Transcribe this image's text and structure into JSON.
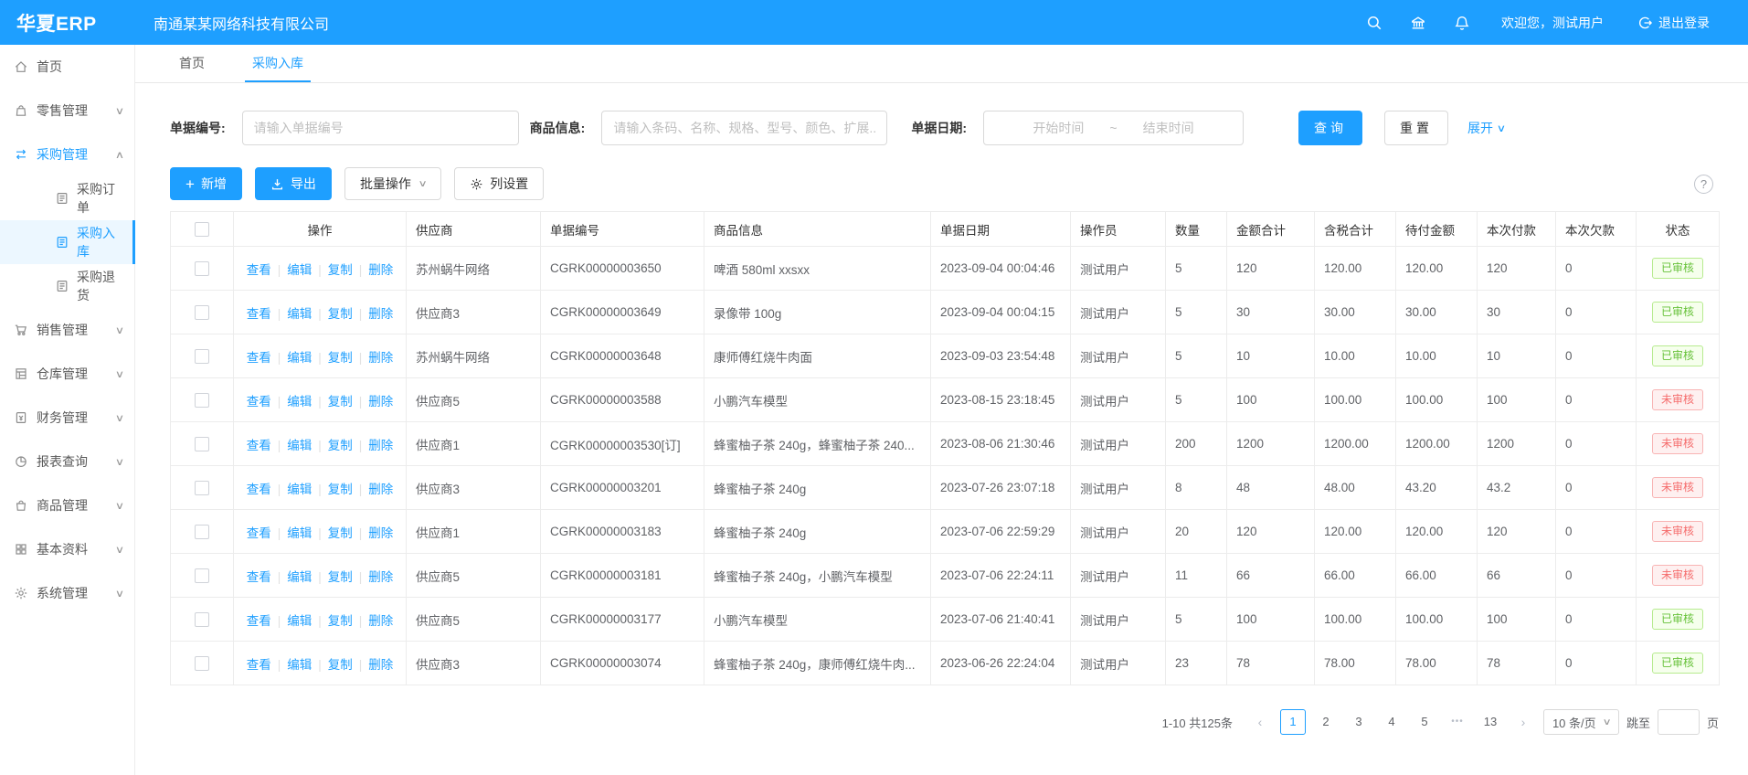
{
  "colors": {
    "primary": "#1e9fff",
    "approved_green": "#67c23a",
    "pending_red": "#f56c6c"
  },
  "header": {
    "logo": "华夏ERP",
    "company": "南通某某网络科技有限公司",
    "welcome": "欢迎您，测试用户",
    "logout": "退出登录"
  },
  "tabs": [
    {
      "id": "home",
      "label": "首页",
      "active": false
    },
    {
      "id": "purchase-in",
      "label": "采购入库",
      "active": true
    }
  ],
  "sidebar": {
    "items": [
      {
        "id": "home",
        "label": "首页",
        "icon": "home"
      },
      {
        "id": "retail",
        "label": "零售管理",
        "icon": "retail",
        "chevron": "down"
      },
      {
        "id": "purchase",
        "label": "采购管理",
        "icon": "purchase",
        "chevron": "up",
        "active": true
      },
      {
        "id": "purchase-order",
        "label": "采购订单",
        "icon": "doc",
        "child": true
      },
      {
        "id": "purchase-in",
        "label": "采购入库",
        "icon": "doc",
        "child": true,
        "selected": true
      },
      {
        "id": "purchase-return",
        "label": "采购退货",
        "icon": "doc",
        "child": true
      },
      {
        "id": "sales",
        "label": "销售管理",
        "icon": "cart",
        "chevron": "down"
      },
      {
        "id": "warehouse",
        "label": "仓库管理",
        "icon": "warehouse",
        "chevron": "down"
      },
      {
        "id": "finance",
        "label": "财务管理",
        "icon": "finance",
        "chevron": "down"
      },
      {
        "id": "report",
        "label": "报表查询",
        "icon": "report",
        "chevron": "down"
      },
      {
        "id": "goods",
        "label": "商品管理",
        "icon": "goods",
        "chevron": "down"
      },
      {
        "id": "basic",
        "label": "基本资料",
        "icon": "basic",
        "chevron": "down"
      },
      {
        "id": "system",
        "label": "系统管理",
        "icon": "system",
        "chevron": "down"
      }
    ]
  },
  "filters": {
    "bill_no_label": "单据编号:",
    "bill_no_placeholder": "请输入单据编号",
    "product_label": "商品信息:",
    "product_placeholder": "请输入条码、名称、规格、型号、颜色、扩展...",
    "date_label": "单据日期:",
    "date_start": "开始时间",
    "date_sep": "~",
    "date_end": "结束时间",
    "search": "查询",
    "reset": "重置",
    "expand": "展开"
  },
  "toolbar": {
    "add": "新增",
    "export": "导出",
    "batch": "批量操作",
    "columns": "列设置",
    "help": "?"
  },
  "table": {
    "headers": [
      "操作",
      "供应商",
      "单据编号",
      "商品信息",
      "单据日期",
      "操作员",
      "数量",
      "金额合计",
      "含税合计",
      "待付金额",
      "本次付款",
      "本次欠款",
      "状态"
    ],
    "actions": [
      "查看",
      "编辑",
      "复制",
      "删除"
    ],
    "rows": [
      {
        "supplier": "苏州蜗牛网络",
        "bill_no": "CGRK00000003650",
        "product": "啤酒 580ml xxsxx",
        "date": "2023-09-04 00:04:46",
        "operator": "测试用户",
        "qty": "5",
        "amount": "120",
        "tax_total": "120.00",
        "due": "120.00",
        "paid": "120",
        "debt": "0",
        "status": "已审核",
        "status_type": "approved"
      },
      {
        "supplier": "供应商3",
        "bill_no": "CGRK00000003649",
        "product": "录像带 100g",
        "date": "2023-09-04 00:04:15",
        "operator": "测试用户",
        "qty": "5",
        "amount": "30",
        "tax_total": "30.00",
        "due": "30.00",
        "paid": "30",
        "debt": "0",
        "status": "已审核",
        "status_type": "approved"
      },
      {
        "supplier": "苏州蜗牛网络",
        "bill_no": "CGRK00000003648",
        "product": "康师傅红烧牛肉面",
        "date": "2023-09-03 23:54:48",
        "operator": "测试用户",
        "qty": "5",
        "amount": "10",
        "tax_total": "10.00",
        "due": "10.00",
        "paid": "10",
        "debt": "0",
        "status": "已审核",
        "status_type": "approved"
      },
      {
        "supplier": "供应商5",
        "bill_no": "CGRK00000003588",
        "product": "小鹏汽车模型",
        "date": "2023-08-15 23:18:45",
        "operator": "测试用户",
        "qty": "5",
        "amount": "100",
        "tax_total": "100.00",
        "due": "100.00",
        "paid": "100",
        "debt": "0",
        "status": "未审核",
        "status_type": "pending"
      },
      {
        "supplier": "供应商1",
        "bill_no": "CGRK00000003530[订]",
        "product": "蜂蜜柚子茶 240g，蜂蜜柚子茶 240...",
        "date": "2023-08-06 21:30:46",
        "operator": "测试用户",
        "qty": "200",
        "amount": "1200",
        "tax_total": "1200.00",
        "due": "1200.00",
        "paid": "1200",
        "debt": "0",
        "status": "未审核",
        "status_type": "pending"
      },
      {
        "supplier": "供应商3",
        "bill_no": "CGRK00000003201",
        "product": "蜂蜜柚子茶 240g",
        "date": "2023-07-26 23:07:18",
        "operator": "测试用户",
        "qty": "8",
        "amount": "48",
        "tax_total": "48.00",
        "due": "43.20",
        "paid": "43.2",
        "debt": "0",
        "status": "未审核",
        "status_type": "pending"
      },
      {
        "supplier": "供应商1",
        "bill_no": "CGRK00000003183",
        "product": "蜂蜜柚子茶 240g",
        "date": "2023-07-06 22:59:29",
        "operator": "测试用户",
        "qty": "20",
        "amount": "120",
        "tax_total": "120.00",
        "due": "120.00",
        "paid": "120",
        "debt": "0",
        "status": "未审核",
        "status_type": "pending"
      },
      {
        "supplier": "供应商5",
        "bill_no": "CGRK00000003181",
        "product": "蜂蜜柚子茶 240g，小鹏汽车模型",
        "date": "2023-07-06 22:24:11",
        "operator": "测试用户",
        "qty": "11",
        "amount": "66",
        "tax_total": "66.00",
        "due": "66.00",
        "paid": "66",
        "debt": "0",
        "status": "未审核",
        "status_type": "pending"
      },
      {
        "supplier": "供应商5",
        "bill_no": "CGRK00000003177",
        "product": "小鹏汽车模型",
        "date": "2023-07-06 21:40:41",
        "operator": "测试用户",
        "qty": "5",
        "amount": "100",
        "tax_total": "100.00",
        "due": "100.00",
        "paid": "100",
        "debt": "0",
        "status": "已审核",
        "status_type": "approved"
      },
      {
        "supplier": "供应商3",
        "bill_no": "CGRK00000003074",
        "product": "蜂蜜柚子茶 240g，康师傅红烧牛肉...",
        "date": "2023-06-26 22:24:04",
        "operator": "测试用户",
        "qty": "23",
        "amount": "78",
        "tax_total": "78.00",
        "due": "78.00",
        "paid": "78",
        "debt": "0",
        "status": "已审核",
        "status_type": "approved"
      }
    ]
  },
  "pagination": {
    "summary": "1-10 共125条",
    "pages": [
      "1",
      "2",
      "3",
      "4",
      "5",
      "•••",
      "13"
    ],
    "active_page": "1",
    "page_size": "10 条/页",
    "jump_label": "跳至",
    "jump_suffix": "页"
  }
}
